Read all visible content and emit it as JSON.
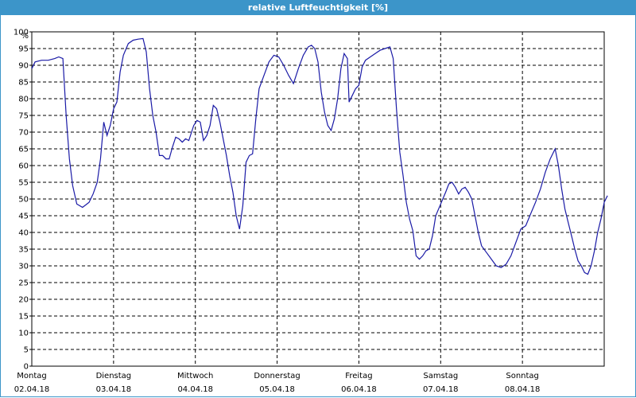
{
  "window": {
    "title": "relative Luftfeuchtigkeit [%]"
  },
  "colors": {
    "titlebar": "#3c95c9",
    "line": "#1a1aa6",
    "grid": "#000000"
  },
  "chart_data": {
    "type": "line",
    "title": "relative Luftfeuchtigkeit [%]",
    "ylabel": "%",
    "ylim": [
      0,
      100
    ],
    "ystep": 5,
    "grid": true,
    "x_categories": [
      {
        "day": "Montag",
        "date": "02.04.18"
      },
      {
        "day": "Dienstag",
        "date": "03.04.18"
      },
      {
        "day": "Mittwoch",
        "date": "04.04.18"
      },
      {
        "day": "Donnerstag",
        "date": "05.04.18"
      },
      {
        "day": "Freitag",
        "date": "06.04.18"
      },
      {
        "day": "Samstag",
        "date": "07.04.18"
      },
      {
        "day": "Sonntag",
        "date": "08.04.18"
      }
    ],
    "xlim_days": [
      0,
      7
    ],
    "series": [
      {
        "name": "",
        "points": [
          [
            0.0,
            89
          ],
          [
            0.04,
            91
          ],
          [
            0.12,
            91.5
          ],
          [
            0.2,
            91.5
          ],
          [
            0.28,
            92
          ],
          [
            0.33,
            92.5
          ],
          [
            0.38,
            92
          ],
          [
            0.42,
            75
          ],
          [
            0.46,
            62
          ],
          [
            0.5,
            54
          ],
          [
            0.55,
            48.5
          ],
          [
            0.62,
            47.5
          ],
          [
            0.7,
            49
          ],
          [
            0.75,
            51.5
          ],
          [
            0.8,
            55
          ],
          [
            0.84,
            62
          ],
          [
            0.88,
            73
          ],
          [
            0.92,
            69
          ],
          [
            0.96,
            72
          ],
          [
            1.0,
            77
          ],
          [
            1.04,
            79
          ],
          [
            1.08,
            88
          ],
          [
            1.12,
            93
          ],
          [
            1.18,
            96.5
          ],
          [
            1.24,
            97.5
          ],
          [
            1.3,
            97.8
          ],
          [
            1.36,
            98
          ],
          [
            1.4,
            94
          ],
          [
            1.44,
            83
          ],
          [
            1.48,
            75
          ],
          [
            1.52,
            70
          ],
          [
            1.56,
            63
          ],
          [
            1.6,
            63
          ],
          [
            1.64,
            62
          ],
          [
            1.68,
            62
          ],
          [
            1.72,
            65.5
          ],
          [
            1.76,
            68.5
          ],
          [
            1.8,
            68
          ],
          [
            1.84,
            67
          ],
          [
            1.88,
            68
          ],
          [
            1.92,
            67.5
          ],
          [
            1.98,
            72
          ],
          [
            2.02,
            73.5
          ],
          [
            2.06,
            73
          ],
          [
            2.1,
            67.5
          ],
          [
            2.14,
            69
          ],
          [
            2.18,
            72
          ],
          [
            2.22,
            78
          ],
          [
            2.26,
            77
          ],
          [
            2.3,
            73
          ],
          [
            2.34,
            68
          ],
          [
            2.38,
            63
          ],
          [
            2.42,
            57
          ],
          [
            2.46,
            52
          ],
          [
            2.5,
            45
          ],
          [
            2.54,
            41
          ],
          [
            2.58,
            48
          ],
          [
            2.62,
            61
          ],
          [
            2.66,
            63
          ],
          [
            2.7,
            63.5
          ],
          [
            2.74,
            74
          ],
          [
            2.78,
            83
          ],
          [
            2.84,
            87
          ],
          [
            2.9,
            91
          ],
          [
            2.96,
            93
          ],
          [
            3.02,
            92.5
          ],
          [
            3.08,
            90
          ],
          [
            3.14,
            87
          ],
          [
            3.2,
            84.5
          ],
          [
            3.26,
            89
          ],
          [
            3.32,
            93
          ],
          [
            3.38,
            95.5
          ],
          [
            3.42,
            96
          ],
          [
            3.46,
            95
          ],
          [
            3.5,
            91
          ],
          [
            3.54,
            82
          ],
          [
            3.58,
            76
          ],
          [
            3.62,
            72
          ],
          [
            3.66,
            70.5
          ],
          [
            3.7,
            74
          ],
          [
            3.74,
            80
          ],
          [
            3.78,
            89
          ],
          [
            3.82,
            93.5
          ],
          [
            3.86,
            92
          ],
          [
            3.88,
            79
          ],
          [
            3.92,
            81
          ],
          [
            3.96,
            83
          ],
          [
            4.0,
            84
          ],
          [
            4.04,
            89.5
          ],
          [
            4.08,
            91.5
          ],
          [
            4.14,
            92.5
          ],
          [
            4.2,
            93.5
          ],
          [
            4.26,
            94.5
          ],
          [
            4.32,
            95
          ],
          [
            4.38,
            95.5
          ],
          [
            4.42,
            92
          ],
          [
            4.46,
            77
          ],
          [
            4.5,
            64
          ],
          [
            4.54,
            57
          ],
          [
            4.58,
            49
          ],
          [
            4.62,
            44
          ],
          [
            4.66,
            40.5
          ],
          [
            4.7,
            33
          ],
          [
            4.74,
            32
          ],
          [
            4.78,
            33
          ],
          [
            4.82,
            34.5
          ],
          [
            4.86,
            35
          ],
          [
            4.9,
            39
          ],
          [
            4.94,
            45
          ],
          [
            5.0,
            48.5
          ],
          [
            5.06,
            52
          ],
          [
            5.1,
            54.5
          ],
          [
            5.14,
            55
          ],
          [
            5.18,
            53.5
          ],
          [
            5.22,
            51.5
          ],
          [
            5.26,
            53
          ],
          [
            5.3,
            53.5
          ],
          [
            5.34,
            52
          ],
          [
            5.38,
            50
          ],
          [
            5.42,
            45
          ],
          [
            5.46,
            40
          ],
          [
            5.5,
            36
          ],
          [
            5.56,
            34
          ],
          [
            5.62,
            32
          ],
          [
            5.68,
            30
          ],
          [
            5.74,
            29.5
          ],
          [
            5.8,
            30.5
          ],
          [
            5.86,
            33
          ],
          [
            5.92,
            37
          ],
          [
            5.98,
            41
          ],
          [
            6.04,
            42
          ],
          [
            6.1,
            45.5
          ],
          [
            6.16,
            49
          ],
          [
            6.22,
            53
          ],
          [
            6.28,
            58
          ],
          [
            6.34,
            62
          ],
          [
            6.4,
            65
          ],
          [
            6.44,
            60
          ],
          [
            6.48,
            53
          ],
          [
            6.52,
            47
          ],
          [
            6.56,
            43
          ],
          [
            6.6,
            39
          ],
          [
            6.64,
            35
          ],
          [
            6.68,
            31.5
          ],
          [
            6.72,
            30
          ],
          [
            6.76,
            28
          ],
          [
            6.8,
            27.5
          ],
          [
            6.84,
            30
          ],
          [
            6.88,
            34.5
          ],
          [
            6.92,
            40
          ],
          [
            6.96,
            44
          ],
          [
            7.0,
            49
          ],
          [
            7.04,
            51
          ]
        ]
      }
    ]
  }
}
